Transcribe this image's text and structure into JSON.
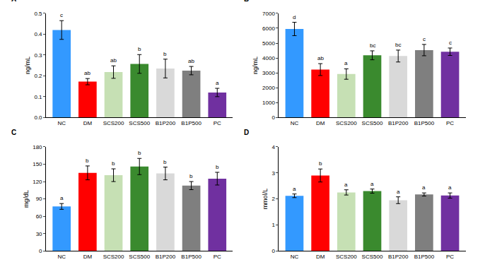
{
  "chart_data": [
    {
      "type": "bar",
      "title": "A",
      "y_label": "ng/mL",
      "categories": [
        "NC",
        "DM",
        "SCS200",
        "SCS500",
        "B1P200",
        "B1P500",
        "PC"
      ],
      "values": [
        0.42,
        0.172,
        0.218,
        0.257,
        0.235,
        0.225,
        0.12
      ],
      "errors": [
        0.045,
        0.015,
        0.03,
        0.045,
        0.045,
        0.02,
        0.02
      ],
      "annotations": [
        "c",
        "ab",
        "ab",
        "b",
        "b",
        "ab",
        "a"
      ],
      "colors": [
        "#3399ff",
        "#ff0000",
        "#c6e0b4",
        "#3a8a2e",
        "#d9d9d9",
        "#7f7f7f",
        "#7030a0"
      ],
      "ylim": [
        0,
        0.5
      ],
      "yticks": [
        {
          "value": 0,
          "label": "0.0"
        },
        0.1,
        0.2,
        0.3,
        0.4,
        0.5
      ],
      "grid": false
    },
    {
      "type": "bar",
      "title": "B",
      "y_label": "ng/mL",
      "categories": [
        "NC",
        "DM",
        "SCS200",
        "SCS500",
        "B1P200",
        "B1P500",
        "PC"
      ],
      "values": [
        5950,
        3220,
        2920,
        4180,
        4130,
        4530,
        4420
      ],
      "errors": [
        450,
        400,
        350,
        300,
        400,
        380,
        250
      ],
      "annotations": [
        "d",
        "ab",
        "a",
        "bc",
        "bc",
        "c",
        "c"
      ],
      "colors": [
        "#3399ff",
        "#ff0000",
        "#c6e0b4",
        "#3a8a2e",
        "#d9d9d9",
        "#7f7f7f",
        "#7030a0"
      ],
      "ylim": [
        0,
        7000
      ],
      "yticks": [
        0,
        1000,
        2000,
        3000,
        4000,
        5000,
        6000,
        7000
      ],
      "grid": false
    },
    {
      "type": "bar",
      "title": "C",
      "y_label": "mg/dL",
      "categories": [
        "NC",
        "DM",
        "SCS200",
        "SCS500",
        "B1P200",
        "B1P500",
        "PC"
      ],
      "values": [
        77,
        135,
        131,
        146,
        134,
        113,
        125
      ],
      "errors": [
        5,
        12,
        11,
        14,
        11,
        7,
        11
      ],
      "annotations": [
        "a",
        "b",
        "b",
        "b",
        "b",
        "b",
        "b"
      ],
      "colors": [
        "#3399ff",
        "#ff0000",
        "#c6e0b4",
        "#3a8a2e",
        "#d9d9d9",
        "#7f7f7f",
        "#7030a0"
      ],
      "ylim": [
        0,
        180
      ],
      "yticks": [
        0,
        30,
        60,
        90,
        120,
        150,
        180
      ],
      "grid": false
    },
    {
      "type": "bar",
      "title": "D",
      "y_label": "mmol/L",
      "categories": [
        "NC",
        "DM",
        "SCS200",
        "SCS500",
        "B1P200",
        "B1P500",
        "PC"
      ],
      "values": [
        2.12,
        2.9,
        2.25,
        2.3,
        1.95,
        2.17,
        2.13
      ],
      "errors": [
        0.07,
        0.25,
        0.1,
        0.08,
        0.13,
        0.06,
        0.1
      ],
      "annotations": [
        "a",
        "b",
        "a",
        "a",
        "a",
        "a",
        "a"
      ],
      "colors": [
        "#3399ff",
        "#ff0000",
        "#c6e0b4",
        "#3a8a2e",
        "#d9d9d9",
        "#7f7f7f",
        "#7030a0"
      ],
      "ylim": [
        0,
        4
      ],
      "yticks": [
        0,
        1,
        2,
        3,
        4
      ],
      "grid": false
    }
  ]
}
